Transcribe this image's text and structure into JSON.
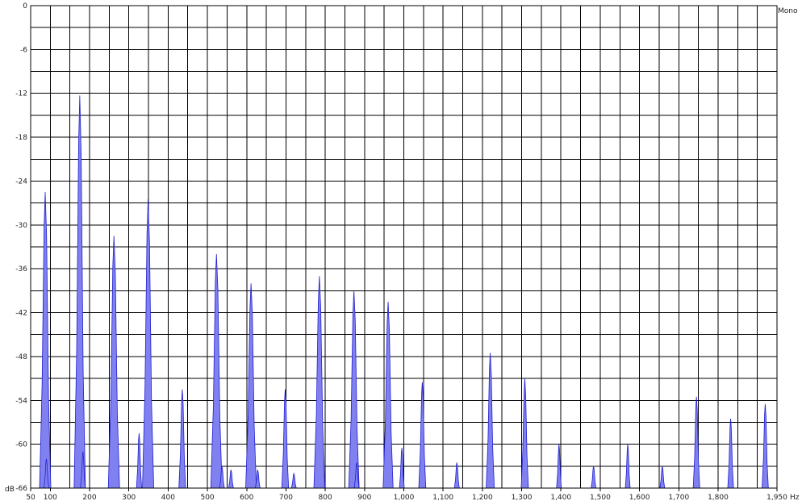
{
  "chart_data": {
    "type": "area",
    "title": "",
    "channel_label": "Mono",
    "xunit": "Hz",
    "yunit": "dB",
    "xlim": [
      50,
      1950
    ],
    "ylim": [
      -66,
      0
    ],
    "grid": true,
    "x_ticks": [
      {
        "v": 50,
        "label": "50"
      },
      {
        "v": 100,
        "label": "100"
      },
      {
        "v": 200,
        "label": "200"
      },
      {
        "v": 300,
        "label": "300"
      },
      {
        "v": 400,
        "label": "400"
      },
      {
        "v": 500,
        "label": "500"
      },
      {
        "v": 600,
        "label": "600"
      },
      {
        "v": 700,
        "label": "700"
      },
      {
        "v": 800,
        "label": "800"
      },
      {
        "v": 900,
        "label": "900"
      },
      {
        "v": 1000,
        "label": "1,000"
      },
      {
        "v": 1100,
        "label": "1,100"
      },
      {
        "v": 1200,
        "label": "1,200"
      },
      {
        "v": 1300,
        "label": "1,300"
      },
      {
        "v": 1400,
        "label": "1,400"
      },
      {
        "v": 1500,
        "label": "1,500"
      },
      {
        "v": 1600,
        "label": "1,600"
      },
      {
        "v": 1700,
        "label": "1,700"
      },
      {
        "v": 1800,
        "label": "1,800"
      },
      {
        "v": 1950,
        "label": "1,950"
      }
    ],
    "y_ticks": [
      0,
      -6,
      -12,
      -18,
      -24,
      -30,
      -36,
      -42,
      -48,
      -54,
      -60,
      -66
    ],
    "series_color": "#8080f0",
    "series_stroke": "#2020d0",
    "peaks": [
      {
        "freq": 87,
        "db": -25.5
      },
      {
        "freq": 90,
        "db": -62
      },
      {
        "freq": 175,
        "db": -12.3
      },
      {
        "freq": 183,
        "db": -61
      },
      {
        "freq": 262,
        "db": -31.5
      },
      {
        "freq": 326,
        "db": -58.5
      },
      {
        "freq": 349,
        "db": -26.5
      },
      {
        "freq": 436,
        "db": -52.5
      },
      {
        "freq": 523,
        "db": -34
      },
      {
        "freq": 537,
        "db": -63
      },
      {
        "freq": 560,
        "db": -63.5
      },
      {
        "freq": 611,
        "db": -38
      },
      {
        "freq": 628,
        "db": -63.5
      },
      {
        "freq": 698,
        "db": -52.5
      },
      {
        "freq": 720,
        "db": -64
      },
      {
        "freq": 785,
        "db": -37
      },
      {
        "freq": 873,
        "db": -39
      },
      {
        "freq": 880,
        "db": -62.5
      },
      {
        "freq": 960,
        "db": -40.5
      },
      {
        "freq": 995,
        "db": -60.5
      },
      {
        "freq": 1047,
        "db": -51.5
      },
      {
        "freq": 1135,
        "db": -62.5
      },
      {
        "freq": 1220,
        "db": -47.5
      },
      {
        "freq": 1308,
        "db": -51
      },
      {
        "freq": 1395,
        "db": -60
      },
      {
        "freq": 1483,
        "db": -63
      },
      {
        "freq": 1570,
        "db": -60
      },
      {
        "freq": 1658,
        "db": -63
      },
      {
        "freq": 1745,
        "db": -53.5
      },
      {
        "freq": 1832,
        "db": -56.5
      },
      {
        "freq": 1920,
        "db": -54.5
      }
    ]
  }
}
